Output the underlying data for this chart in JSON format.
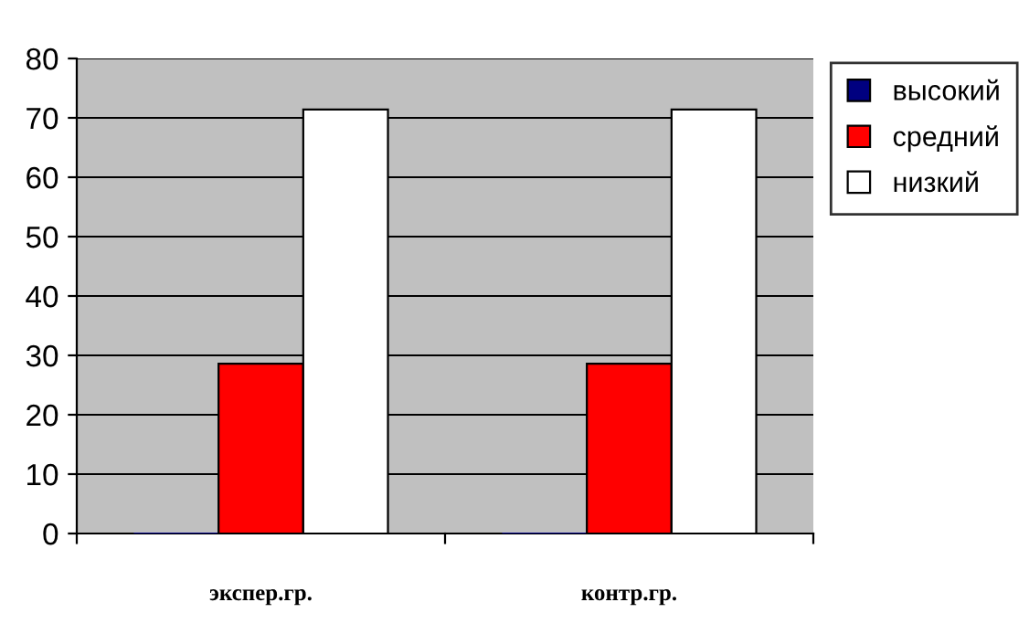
{
  "chart_data": {
    "type": "bar",
    "categories": [
      "экспер.гр.",
      "контр.гр."
    ],
    "series": [
      {
        "name": "высокий",
        "color": "#000080",
        "values": [
          0,
          0
        ]
      },
      {
        "name": "средний",
        "color": "#ff0000",
        "values": [
          28.6,
          28.6
        ]
      },
      {
        "name": "низкий",
        "color": "#ffffff",
        "values": [
          71.4,
          71.4
        ]
      }
    ],
    "ylim": [
      0,
      80
    ],
    "yticks": [
      0,
      10,
      20,
      30,
      40,
      50,
      60,
      70,
      80
    ],
    "grid": "y",
    "legend": "top right"
  }
}
